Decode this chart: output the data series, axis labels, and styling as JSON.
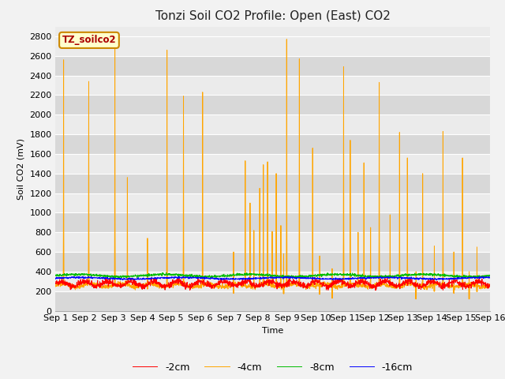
{
  "title": "Tonzi Soil CO2 Profile: Open (East) CO2",
  "xlabel": "Time",
  "ylabel": "Soil CO2 (mV)",
  "ylim": [
    0,
    2900
  ],
  "yticks": [
    0,
    200,
    400,
    600,
    800,
    1000,
    1200,
    1400,
    1600,
    1800,
    2000,
    2200,
    2400,
    2600,
    2800
  ],
  "xlim": [
    0,
    15
  ],
  "xtick_labels": [
    "Sep 1",
    "Sep 2",
    "Sep 3",
    "Sep 4",
    "Sep 5",
    "Sep 6",
    "Sep 7",
    "Sep 8",
    "Sep 9",
    "Sep 10",
    "Sep 11",
    "Sep 12",
    "Sep 13",
    "Sep 14",
    "Sep 15",
    "Sep 16"
  ],
  "legend_labels": [
    "-2cm",
    "-4cm",
    "-8cm",
    "-16cm"
  ],
  "line_colors": [
    "#ff0000",
    "#ffa500",
    "#00bb00",
    "#0000ff"
  ],
  "annotation_text": "TZ_soilco2",
  "annotation_color": "#aa0000",
  "annotation_bg": "#ffffcc",
  "annotation_border": "#cc8800",
  "plot_bg_light": "#ebebeb",
  "plot_bg_dark": "#d8d8d8",
  "grid_color": "#ffffff",
  "fig_bg": "#f2f2f2",
  "title_fontsize": 11,
  "axis_fontsize": 8,
  "legend_fontsize": 9
}
